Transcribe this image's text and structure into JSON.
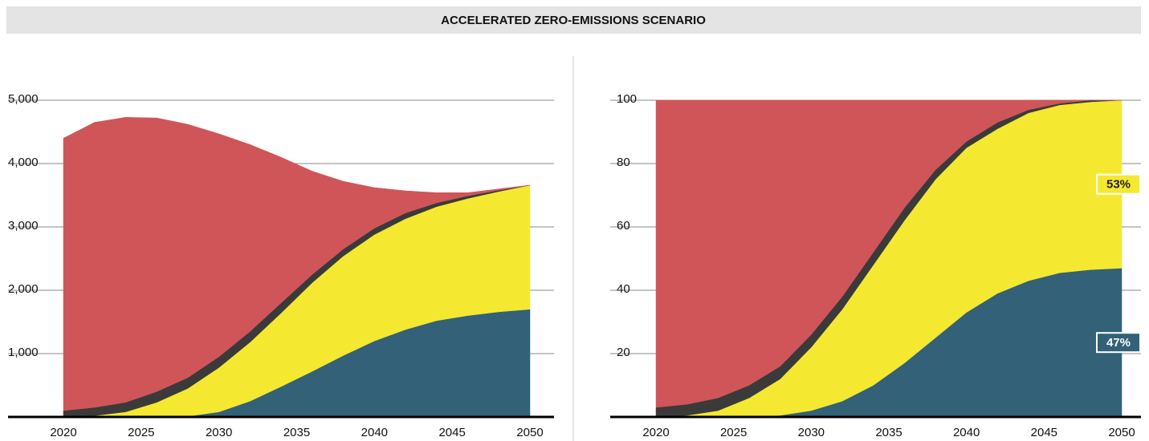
{
  "title": "ACCELERATED ZERO-EMISSIONS SCENARIO",
  "chart_data": [
    {
      "type": "stacked_area",
      "x": [
        2020,
        2022,
        2024,
        2026,
        2028,
        2030,
        2032,
        2034,
        2036,
        2038,
        2040,
        2042,
        2044,
        2046,
        2048,
        2050
      ],
      "xlim": [
        2020,
        2050
      ],
      "xticks": [
        2020,
        2025,
        2030,
        2035,
        2040,
        2045,
        2050
      ],
      "ylim": [
        0,
        5000
      ],
      "yticks": [
        {
          "value": 1000,
          "label": "1,000"
        },
        {
          "value": 2000,
          "label": "2,000"
        },
        {
          "value": 3000,
          "label": "3,000"
        },
        {
          "value": 4000,
          "label": "4,000"
        },
        {
          "value": 5000,
          "label": "5,000"
        }
      ],
      "grid": true,
      "series": [
        {
          "color": "#336178",
          "values": [
            0,
            0,
            0,
            0,
            10,
            80,
            250,
            480,
            720,
            970,
            1200,
            1380,
            1520,
            1600,
            1660,
            1700
          ]
        },
        {
          "color": "#f5e830",
          "values": [
            0,
            20,
            80,
            230,
            440,
            700,
            930,
            1160,
            1400,
            1570,
            1680,
            1750,
            1800,
            1850,
            1900,
            1960
          ]
        },
        {
          "color": "#3a3a3a",
          "values": [
            100,
            130,
            150,
            170,
            170,
            170,
            170,
            160,
            130,
            110,
            100,
            90,
            60,
            40,
            20,
            0
          ]
        },
        {
          "color": "#d05558",
          "values": [
            4300,
            4500,
            4500,
            4320,
            4000,
            3520,
            2950,
            2300,
            1630,
            1070,
            640,
            350,
            160,
            50,
            20,
            0
          ]
        }
      ]
    },
    {
      "type": "stacked_area",
      "x": [
        2020,
        2022,
        2024,
        2026,
        2028,
        2030,
        2032,
        2034,
        2036,
        2038,
        2040,
        2042,
        2044,
        2046,
        2048,
        2050
      ],
      "xlim": [
        2020,
        2050
      ],
      "xticks": [
        2020,
        2025,
        2030,
        2035,
        2040,
        2045,
        2050
      ],
      "ylim": [
        0,
        100
      ],
      "yticks": [
        20,
        40,
        60,
        80,
        100
      ],
      "grid": true,
      "series": [
        {
          "color": "#336178",
          "values": [
            0,
            0,
            0,
            0,
            0.5,
            2,
            5,
            10,
            17,
            25,
            33,
            39,
            43,
            45.5,
            46.5,
            47
          ],
          "end_label": "47%"
        },
        {
          "color": "#f5e830",
          "values": [
            0,
            0.5,
            2,
            6,
            11.5,
            20,
            29,
            38,
            45,
            50,
            52,
            52,
            53,
            53,
            53,
            53
          ],
          "end_label": "53%"
        },
        {
          "color": "#3a3a3a",
          "values": [
            3,
            3.5,
            4,
            4,
            4,
            4,
            4,
            4,
            4,
            3,
            2,
            2,
            1,
            0.5,
            0.5,
            0
          ]
        },
        {
          "color": "#d05558",
          "values": [
            97,
            96,
            94,
            90,
            84,
            74,
            62,
            48,
            34,
            22,
            13,
            7,
            3,
            1,
            0,
            0
          ]
        }
      ]
    }
  ]
}
